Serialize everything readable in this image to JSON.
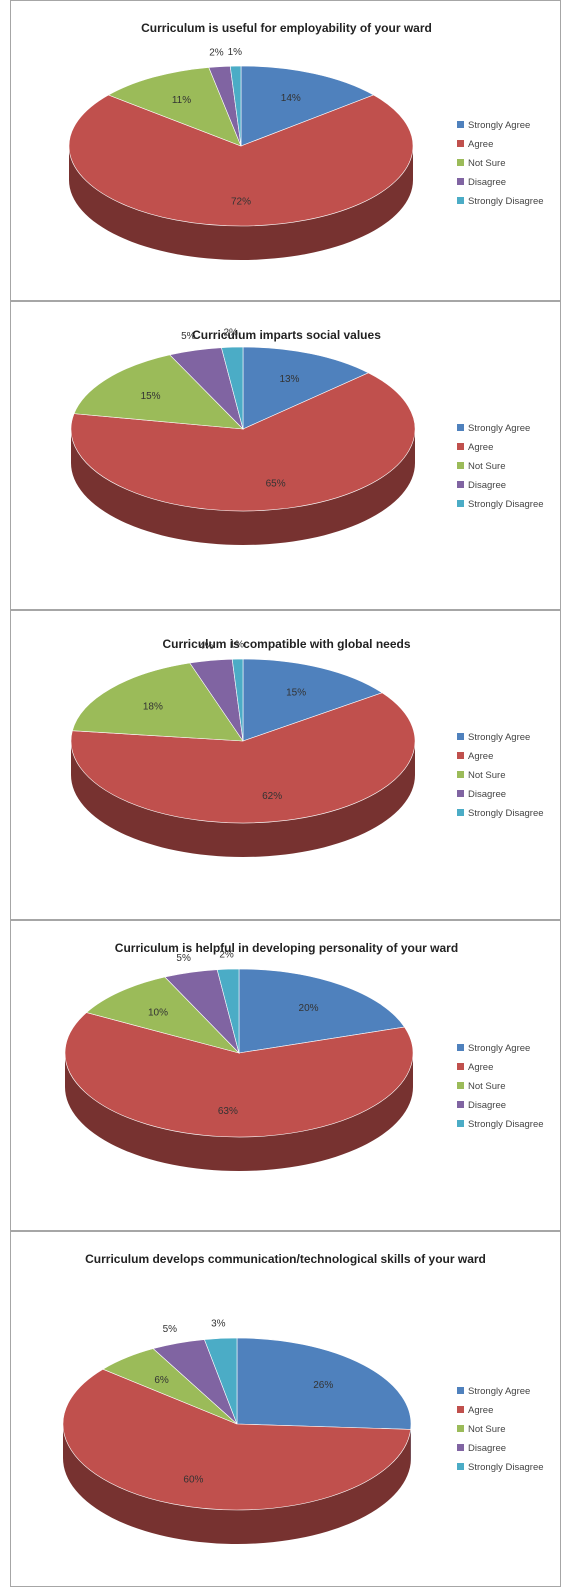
{
  "colors": {
    "Strongly Agree": "#4f81bd",
    "Agree": "#c0504d",
    "Not Sure": "#9bbb59",
    "Disagree": "#8064a2",
    "Strongly Disagree": "#4bacc6"
  },
  "legend_labels": [
    "Strongly Agree",
    "Agree",
    "Not Sure",
    "Disagree",
    "Strongly Disagree"
  ],
  "chart_data": [
    {
      "type": "pie",
      "title": "Curriculum is useful for employability of your ward",
      "categories": [
        "Strongly Agree",
        "Agree",
        "Not Sure",
        "Disagree",
        "Strongly Disagree"
      ],
      "values": [
        14,
        72,
        11,
        2,
        1
      ],
      "labels": [
        "14%",
        "72%",
        "11%",
        "2%",
        "1%"
      ],
      "legend_position": "right",
      "style": "3d"
    },
    {
      "type": "pie",
      "title": "Curriculum imparts social values",
      "categories": [
        "Strongly Agree",
        "Agree",
        "Not Sure",
        "Disagree",
        "Strongly Disagree"
      ],
      "values": [
        13,
        65,
        15,
        5,
        2
      ],
      "labels": [
        "13%",
        "65%",
        "15%",
        "5%",
        "2%"
      ],
      "legend_position": "right",
      "style": "3d"
    },
    {
      "type": "pie",
      "title": "Curriculum is compatible with global needs",
      "categories": [
        "Strongly Agree",
        "Agree",
        "Not Sure",
        "Disagree",
        "Strongly Disagree"
      ],
      "values": [
        15,
        62,
        18,
        4,
        1
      ],
      "labels": [
        "15%",
        "62%",
        "18%",
        "4%",
        "1%"
      ],
      "legend_position": "right",
      "style": "3d"
    },
    {
      "type": "pie",
      "title": "Curriculum is helpful in developing personality of your ward",
      "categories": [
        "Strongly Agree",
        "Agree",
        "Not Sure",
        "Disagree",
        "Strongly Disagree"
      ],
      "values": [
        20,
        63,
        10,
        5,
        2
      ],
      "labels": [
        "20%",
        "63%",
        "10%",
        "5%",
        "2%"
      ],
      "legend_position": "right",
      "style": "3d"
    },
    {
      "type": "pie",
      "title": "Curriculum develops communication/technological skills of your ward",
      "categories": [
        "Strongly Agree",
        "Agree",
        "Not Sure",
        "Disagree",
        "Strongly Disagree"
      ],
      "values": [
        26,
        60,
        6,
        5,
        3
      ],
      "labels": [
        "26%",
        "60%",
        "6%",
        "5%",
        "3%"
      ],
      "legend_position": "right",
      "style": "3d"
    }
  ]
}
